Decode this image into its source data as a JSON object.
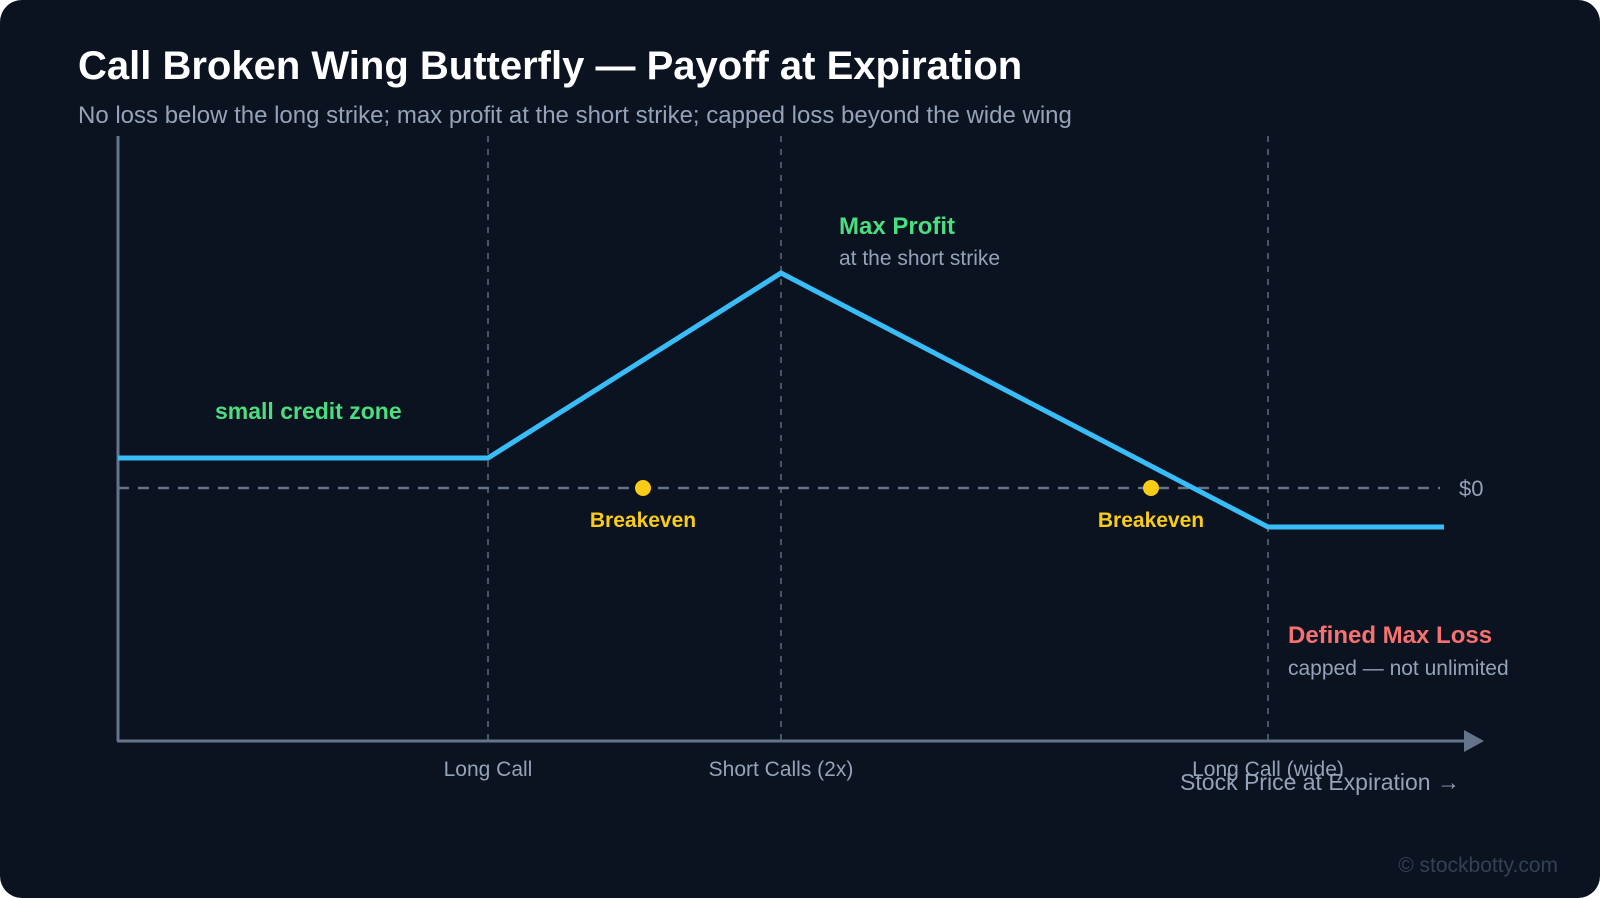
{
  "title": "Call Broken Wing Butterfly — Payoff at Expiration",
  "subtitle": "No loss below the long strike; max profit at the short strike; capped loss beyond the wide wing",
  "strikes": [
    "Long Call",
    "Short Calls (2x)",
    "Long Call (wide)"
  ],
  "x_axis_label": "Stock Price at Expiration →",
  "zero_label": "$0",
  "annotations": {
    "credit_zone": "small credit zone",
    "max_profit_title": "Max Profit",
    "max_profit_sub": "at the short strike",
    "breakeven": "Breakeven",
    "max_loss_title": "Defined Max Loss",
    "max_loss_sub": "capped — not unlimited"
  },
  "watermark": "© stockbotty.com",
  "colors": {
    "background": "#0b1220",
    "payoff_line": "#38bdf8",
    "profit_green": "#4ade80",
    "loss_red": "#f87171",
    "breakeven_yellow": "#facc15",
    "axis": "#64748b",
    "muted_text": "#94a3b8"
  }
}
